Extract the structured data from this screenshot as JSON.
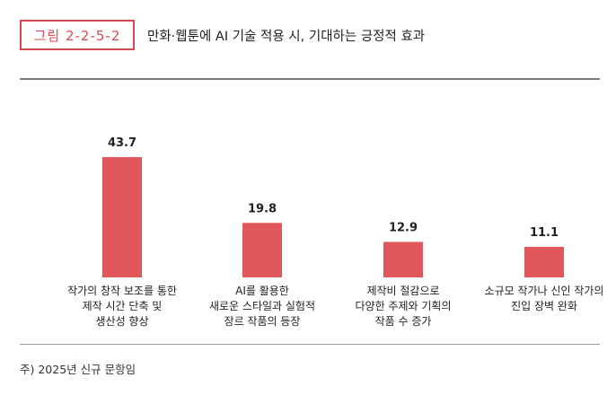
{
  "figure": {
    "badge": "그림 2-2-5-2",
    "title": "만화·웹툰에 AI 기술 적용 시, 기대하는 긍정적 효과"
  },
  "source": "주) 2025년 신규 문항임",
  "colors": {
    "accent": "#d84a52",
    "bar": "#e25759"
  },
  "chart_data": {
    "type": "bar",
    "title": "만화·웹툰에 AI 기술 적용 시, 기대하는 긍정적 효과",
    "xlabel": "",
    "ylabel": "",
    "categories": [
      "작가의 창작 보조를 통한\n제작 시간 단축 및\n생산성 향상",
      "AI를 활용한\n새로운 스타일과 실험적\n장르 작품의 등장",
      "제작비 절감으로\n다양한 주제와 기획의\n작품 수 증가",
      "소규모 작가나 신인 작가의\n진입 장벽 완화"
    ],
    "values": [
      43.7,
      19.8,
      12.9,
      11.1
    ],
    "ylim": [
      0,
      43.7
    ],
    "grid": false,
    "legend": "none"
  }
}
